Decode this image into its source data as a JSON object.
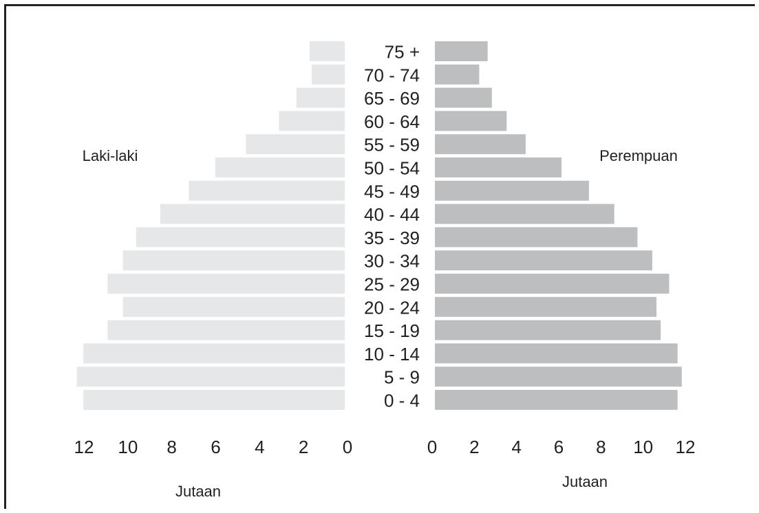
{
  "chart_data": {
    "type": "bar",
    "subtype": "population-pyramid",
    "title": "",
    "categories": [
      "0 - 4",
      "5 - 9",
      "10 - 14",
      "15 - 19",
      "20 - 24",
      "25 - 29",
      "30 - 34",
      "35 - 39",
      "40 - 44",
      "45 - 49",
      "50 - 54",
      "55 - 59",
      "60 - 64",
      "65 - 69",
      "70 - 74",
      "75 +"
    ],
    "series": [
      {
        "name": "Laki-laki",
        "side": "left",
        "color": "#e6e7e8",
        "values": [
          11.9,
          12.2,
          11.9,
          10.8,
          10.1,
          10.8,
          10.1,
          9.5,
          8.4,
          7.1,
          5.9,
          4.5,
          3.0,
          2.2,
          1.5,
          1.6
        ]
      },
      {
        "name": "Perempuan",
        "side": "right",
        "color": "#bcbec0",
        "values": [
          11.5,
          11.7,
          11.5,
          10.7,
          10.5,
          11.1,
          10.3,
          9.6,
          8.5,
          7.3,
          6.0,
          4.3,
          3.4,
          2.7,
          2.1,
          2.5
        ]
      }
    ],
    "left_axis": {
      "ticks": [
        "12",
        "10",
        "8",
        "6",
        "4",
        "2",
        "0"
      ],
      "xlim": [
        0,
        12
      ],
      "xlabel": "Jutaan"
    },
    "right_axis": {
      "ticks": [
        "0",
        "2",
        "4",
        "6",
        "8",
        "10",
        "12"
      ],
      "xlim": [
        0,
        12
      ],
      "xlabel": "Jutaan"
    },
    "grid": false,
    "legend": "none"
  }
}
